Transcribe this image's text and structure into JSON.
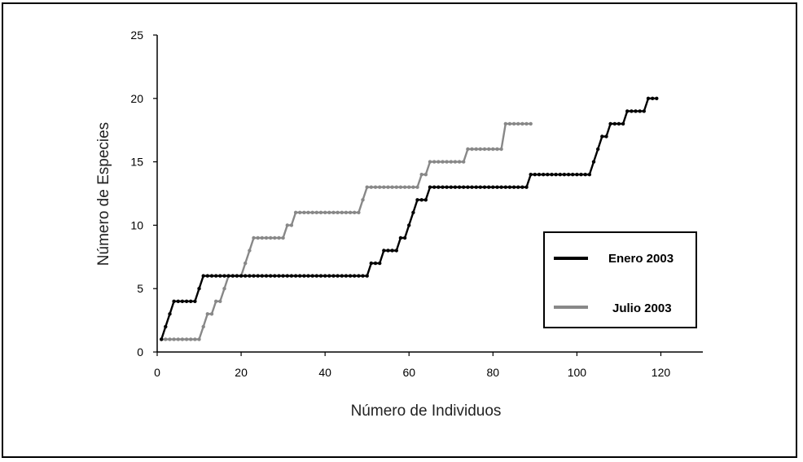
{
  "chart_data": {
    "type": "line",
    "xlabel": "Número de Individuos",
    "ylabel": "Número de Especies",
    "xlim": [
      0,
      130
    ],
    "ylim": [
      0,
      25
    ],
    "xticks": [
      0,
      20,
      40,
      60,
      80,
      100,
      120
    ],
    "yticks": [
      0,
      5,
      10,
      15,
      20,
      25
    ],
    "grid": false,
    "legend_position": "right",
    "series": [
      {
        "name": "Enero 2003",
        "color": "#000000",
        "x": [
          1,
          2,
          3,
          4,
          5,
          6,
          7,
          8,
          9,
          10,
          11,
          50,
          51,
          52,
          53,
          54,
          55,
          56,
          57,
          58,
          59,
          60,
          61,
          62,
          63,
          64,
          65,
          88,
          89,
          103,
          104,
          105,
          106,
          107,
          108,
          111,
          112,
          116,
          117,
          118,
          119
        ],
        "y": [
          1,
          2,
          3,
          4,
          4,
          4,
          4,
          4,
          4,
          5,
          6,
          6,
          7,
          7,
          7,
          8,
          8,
          8,
          8,
          9,
          9,
          10,
          11,
          12,
          12,
          12,
          13,
          13,
          14,
          14,
          15,
          16,
          17,
          17,
          18,
          18,
          19,
          19,
          20,
          20,
          20
        ]
      },
      {
        "name": "Julio 2003",
        "color": "#888888",
        "x": [
          1,
          10,
          11,
          12,
          13,
          14,
          15,
          16,
          17,
          18,
          19,
          20,
          21,
          22,
          23,
          30,
          31,
          32,
          33,
          48,
          49,
          50,
          62,
          63,
          64,
          65,
          73,
          74,
          82,
          83,
          89
        ],
        "y": [
          1,
          1,
          2,
          3,
          3,
          4,
          4,
          5,
          6,
          6,
          6,
          6,
          7,
          8,
          9,
          9,
          10,
          10,
          11,
          11,
          12,
          13,
          13,
          14,
          14,
          15,
          15,
          16,
          16,
          18,
          18
        ]
      }
    ]
  }
}
